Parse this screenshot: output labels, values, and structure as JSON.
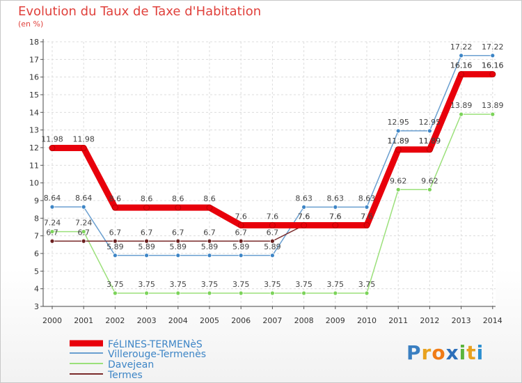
{
  "title": "Evolution du Taux de Taxe d'Habitation",
  "subtitle": "(en %)",
  "logo": {
    "text": "Proxiti",
    "letters": [
      "P",
      "r",
      "o",
      "x",
      "i",
      "t",
      "i"
    ],
    "colors": [
      "#3a7fc1",
      "#e8a21f",
      "#f07b16",
      "#2c6fba",
      "#5cb43c",
      "#e8a21f",
      "#2c8fd0"
    ]
  },
  "chart_data": {
    "type": "line",
    "title": "Evolution du Taux de Taxe d'Habitation",
    "ylabel": "(en %)",
    "xlabel": "",
    "x": [
      "2000",
      "2001",
      "2002",
      "2003",
      "2004",
      "2005",
      "2006",
      "2007",
      "2008",
      "2009",
      "2010",
      "2011",
      "2012",
      "2013",
      "2014"
    ],
    "ylim": [
      3,
      18
    ],
    "yticks": [
      "3",
      "4",
      "5",
      "6",
      "7",
      "8",
      "9",
      "10",
      "11",
      "12",
      "13",
      "14",
      "15",
      "16",
      "17",
      "18"
    ],
    "grid": true,
    "legend_position": "bottom-left",
    "series": [
      {
        "name": "FéLINES-TERMENèS",
        "color": "#e8000b",
        "marker": "#e8000b",
        "bold": true,
        "values": [
          11.98,
          11.98,
          8.6,
          8.6,
          8.6,
          8.6,
          7.6,
          7.6,
          7.6,
          7.6,
          7.6,
          11.89,
          11.89,
          16.16,
          16.16
        ],
        "labels": [
          "11.98",
          "11.98",
          "8.6",
          "8.6",
          "8.6",
          "8.6",
          "7.6",
          "7.6",
          "7.6",
          "7.6",
          "7.6",
          "11.89",
          "11.89",
          "16.16",
          "16.16"
        ]
      },
      {
        "name": "Villerouge-Termenès",
        "color": "#6a9fd0",
        "marker": "#3d85c6",
        "bold": false,
        "values": [
          8.64,
          8.64,
          5.89,
          5.89,
          5.89,
          5.89,
          5.89,
          5.89,
          8.63,
          8.63,
          8.63,
          12.95,
          12.95,
          17.22,
          17.22
        ],
        "labels": [
          "8.64",
          "8.64",
          "5.89",
          "5.89",
          "5.89",
          "5.89",
          "5.89",
          "5.89",
          "8.63",
          "8.63",
          "8.63",
          "12.95",
          "12.95",
          "17.22",
          "17.22"
        ]
      },
      {
        "name": "Davejean",
        "color": "#9be07a",
        "marker": "#7cd35a",
        "bold": false,
        "values": [
          7.24,
          7.24,
          3.75,
          3.75,
          3.75,
          3.75,
          3.75,
          3.75,
          3.75,
          3.75,
          3.75,
          9.62,
          9.62,
          13.89,
          13.89
        ],
        "labels": [
          "7.24",
          "7.24",
          "3.75",
          "3.75",
          "3.75",
          "3.75",
          "3.75",
          "3.75",
          "3.75",
          "3.75",
          "3.75",
          "9.62",
          "9.62",
          "13.89",
          "13.89"
        ]
      },
      {
        "name": "Termes",
        "color": "#7a2a2a",
        "marker": "#6b1f1f",
        "bold": false,
        "values": [
          6.7,
          6.7,
          6.7,
          6.7,
          6.7,
          6.7,
          6.7,
          6.7,
          7.6,
          7.6,
          7.6,
          11.89,
          11.89,
          16.16,
          16.16
        ],
        "labels": [
          "6.7",
          "6.7",
          "6.7",
          "6.7",
          "6.7",
          "6.7",
          "6.7",
          "6.7",
          "7.6",
          "7.6",
          "7.6",
          "11.89",
          "11.89",
          "16.16",
          "16.16"
        ]
      }
    ]
  }
}
